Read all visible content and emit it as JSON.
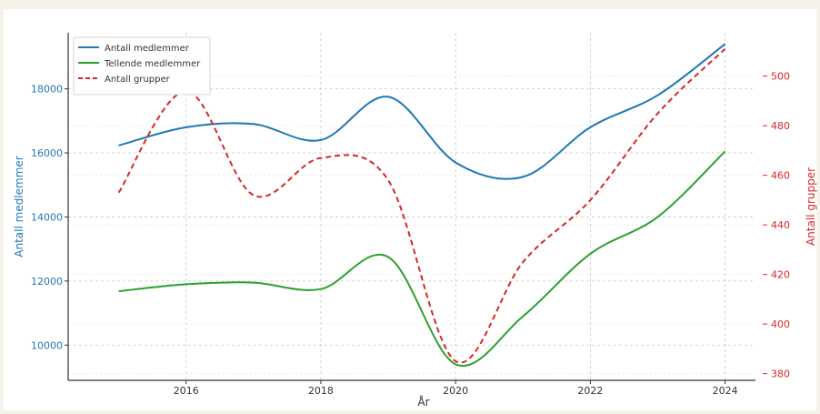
{
  "chart_data": {
    "type": "line",
    "title": "",
    "xlabel": "År",
    "ylabel": "Antall medlemmer",
    "y2label": "Antall grupper",
    "xlim": [
      2014.25,
      2024.45
    ],
    "ylim": [
      8900,
      19750
    ],
    "y2lim": [
      377.3,
      517.5
    ],
    "x_ticks": [
      2016,
      2018,
      2020,
      2022,
      2024
    ],
    "y_ticks": [
      10000,
      12000,
      14000,
      16000,
      18000
    ],
    "y2_ticks": [
      380,
      400,
      420,
      440,
      460,
      480,
      500
    ],
    "grid": true,
    "legend_position": "top-left",
    "x": [
      2015,
      2016,
      2017,
      2018,
      2019,
      2020,
      2021,
      2022,
      2023,
      2024
    ],
    "series": [
      {
        "name": "Antall medlemmer",
        "axis": "left",
        "color": "#1f77b4",
        "dash": "solid",
        "values": [
          16230,
          16800,
          16900,
          16400,
          17750,
          15700,
          15250,
          16800,
          17800,
          19400
        ]
      },
      {
        "name": "Tellende medlemmer",
        "axis": "left",
        "color": "#2ca02c",
        "dash": "solid",
        "values": [
          11680,
          11900,
          11950,
          11750,
          12750,
          9400,
          10900,
          12850,
          14000,
          16050
        ]
      },
      {
        "name": "Antall grupper",
        "axis": "right",
        "color": "#d62728",
        "dash": "dashed",
        "values": [
          453,
          494,
          452,
          467,
          458,
          385,
          425,
          450,
          485,
          511
        ]
      }
    ]
  }
}
